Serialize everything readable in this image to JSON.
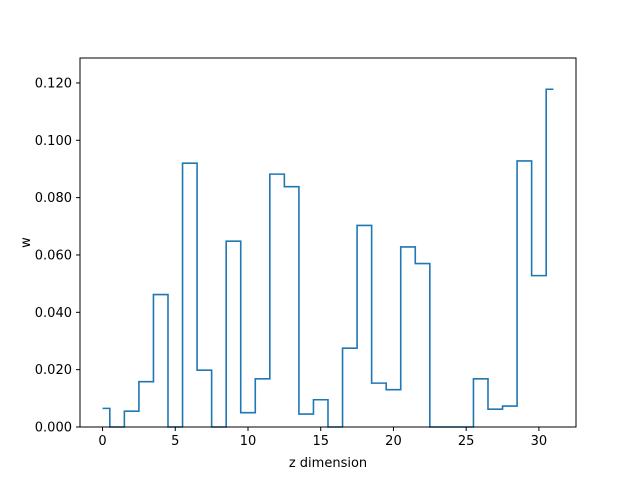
{
  "chart_data": {
    "type": "line",
    "drawstyle": "steps-mid",
    "title": "",
    "xlabel": "z dimension",
    "ylabel": "w",
    "xlim": [
      -1.55,
      32.55
    ],
    "ylim": [
      0.0,
      0.1287
    ],
    "xticks": [
      0,
      5,
      10,
      15,
      20,
      25,
      30
    ],
    "xtick_labels": [
      "0",
      "5",
      "10",
      "15",
      "20",
      "25",
      "30"
    ],
    "yticks": [
      0.0,
      0.02,
      0.04,
      0.06,
      0.08,
      0.1,
      0.12
    ],
    "ytick_labels": [
      "0.000",
      "0.020",
      "0.040",
      "0.060",
      "0.080",
      "0.100",
      "0.120"
    ],
    "grid": false,
    "color": "#1f77b4",
    "series": [
      {
        "x": [
          0,
          1,
          2,
          3,
          4,
          5,
          6,
          7,
          8,
          9,
          10,
          11,
          12,
          13,
          14,
          15,
          16,
          17,
          18,
          19,
          20,
          21,
          22,
          23,
          24,
          25,
          26,
          27,
          28,
          29,
          30,
          31
        ],
        "values": [
          0.0065,
          0.0,
          0.0055,
          0.0158,
          0.0462,
          0.0,
          0.092,
          0.0198,
          0.0,
          0.0648,
          0.005,
          0.0168,
          0.0882,
          0.0838,
          0.0045,
          0.0095,
          0.0,
          0.0275,
          0.0703,
          0.0153,
          0.013,
          0.0628,
          0.057,
          0.0,
          0.0,
          0.0,
          0.0168,
          0.0062,
          0.0073,
          0.0928,
          0.0528,
          0.1178
        ]
      }
    ]
  }
}
